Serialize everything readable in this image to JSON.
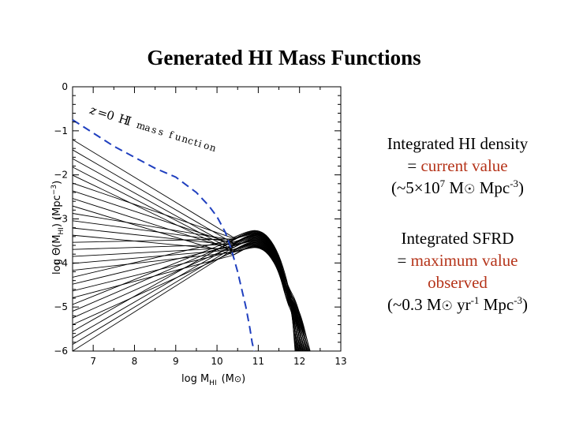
{
  "slide": {
    "title": "Generated HI Mass Functions"
  },
  "side": {
    "p1_line1": "Integrated HI density",
    "p1_eq": "= ",
    "p1_red": "current value",
    "p1_open": "(~5×10",
    "p1_exp": "7",
    "p1_m": " M",
    "p1_sym": "☉",
    "p1_unit": " Mpc",
    "p1_unit_exp": "-3",
    "p1_close": ")",
    "p2_line1": "Integrated SFRD",
    "p2_eq": "= ",
    "p2_red1": "maximum value",
    "p2_red2": "observed",
    "p2_open": "(~0.3 M",
    "p2_sym": "☉",
    "p2_yr": " yr",
    "p2_yr_exp": "-1",
    "p2_unit": " Mpc",
    "p2_unit_exp": "-3",
    "p2_close": ")"
  },
  "chart_data": {
    "type": "line",
    "title": "",
    "xlabel": "log M",
    "xlabel_sub": "HI",
    "xlabel_unit": "(M",
    "xlabel_unit_sym": "⊙",
    "xlabel_unit_close": ")",
    "ylabel": "log Θ(M",
    "ylabel_sub": "HI",
    "ylabel_unit": ")  (Mpc",
    "ylabel_unit_exp": "−3",
    "ylabel_unit_close": ")",
    "xlim": [
      6.5,
      13
    ],
    "ylim": [
      -6,
      0
    ],
    "x_ticks": [
      7,
      8,
      9,
      10,
      11,
      12,
      13
    ],
    "y_ticks": [
      0,
      -1,
      -2,
      -3,
      -4,
      -5,
      -6
    ],
    "y_tick_labels": [
      "0",
      "−1",
      "−2",
      "−3",
      "−4",
      "−5",
      "−6"
    ],
    "grid": false,
    "annotation": "z = 0 HI mass function",
    "annotation_chars": [
      "z",
      "=",
      "0",
      "H",
      "I",
      "m",
      "a",
      "s",
      "s",
      "f",
      "u",
      "n",
      "c",
      "t",
      "i",
      "o",
      "n"
    ],
    "colors": {
      "model_lines": "#000000",
      "z0_mass_function": "#1f3fbf"
    },
    "series": [
      {
        "name": "z = 0 HI mass function",
        "style": "dashed",
        "x": [
          6.5,
          7.0,
          7.5,
          8.0,
          8.5,
          9.0,
          9.5,
          9.8,
          10.0,
          10.2,
          10.35,
          10.5,
          10.6,
          10.7,
          10.8,
          10.85,
          10.9
        ],
        "y": [
          -0.75,
          -1.05,
          -1.35,
          -1.6,
          -1.85,
          -2.05,
          -2.4,
          -2.7,
          -2.95,
          -3.3,
          -3.7,
          -4.2,
          -4.6,
          -5.0,
          -5.5,
          -5.8,
          -6.0
        ]
      }
    ],
    "model_curves": {
      "count": 30,
      "peak_x": 11.0,
      "left_x": 6.5,
      "left_y_range": [
        -1.2,
        -6.0
      ],
      "peak_y_range": [
        -3.3,
        -3.7
      ],
      "right_end_x_range": [
        11.9,
        12.3
      ],
      "right_end_y": -6.0
    }
  }
}
